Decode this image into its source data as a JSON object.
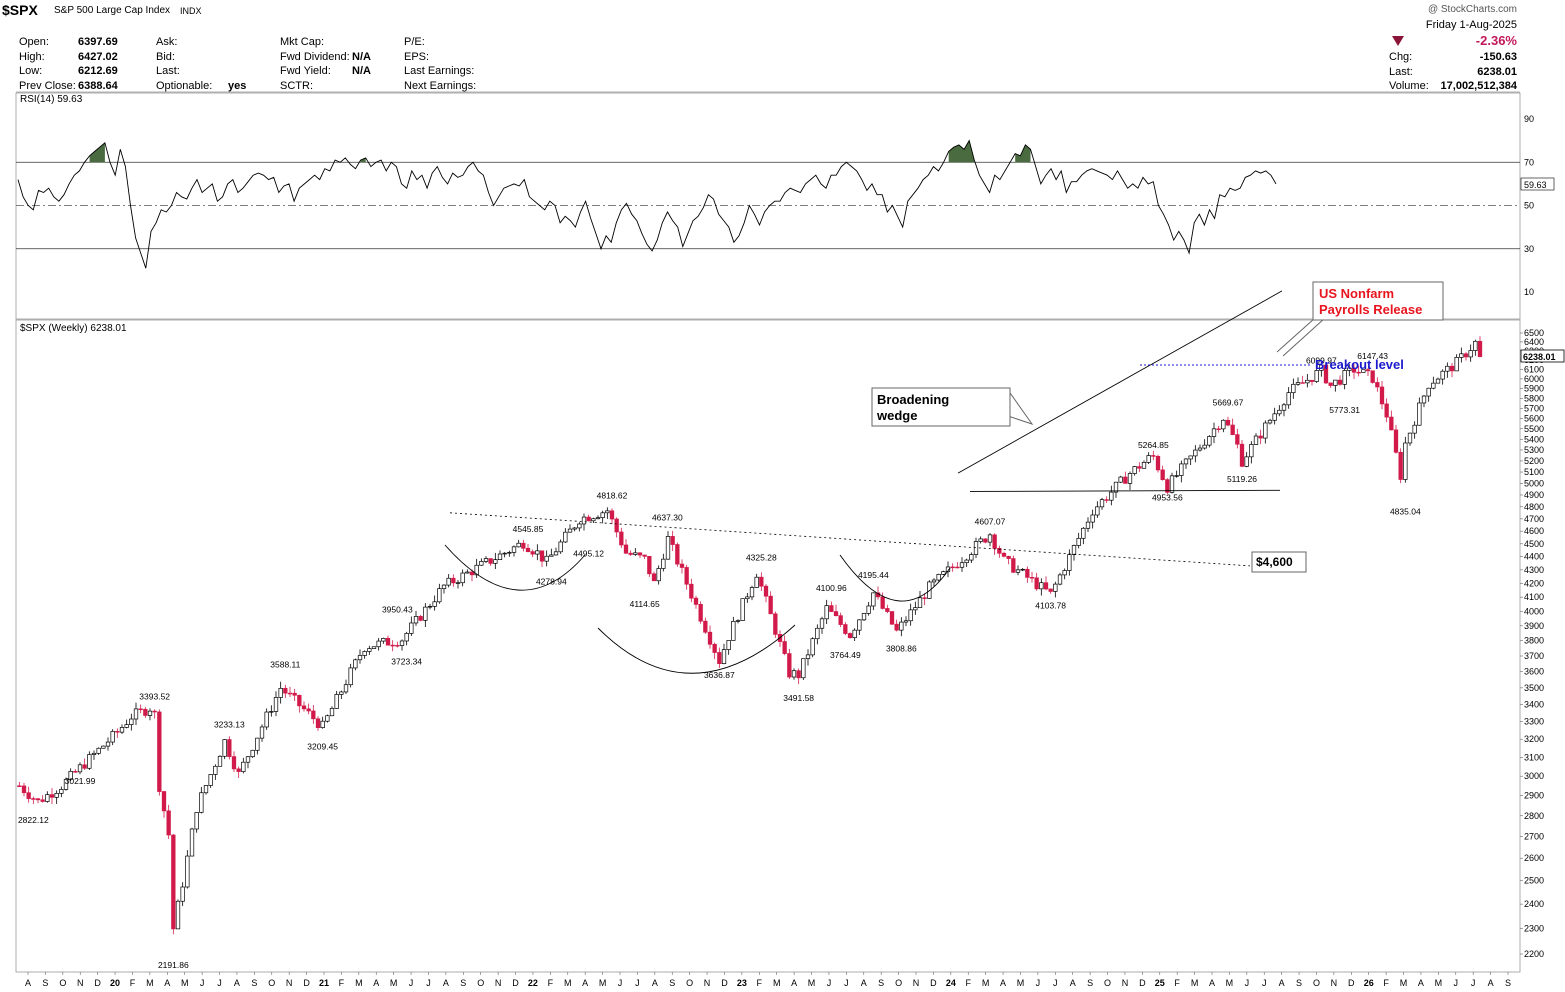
{
  "header": {
    "symbol": "$SPX",
    "name": "S&P 500 Large Cap Index",
    "exchange": "INDX",
    "brand": "@ StockCharts.com",
    "date": "Friday  1-Aug-2025",
    "change_pct": "-2.36%",
    "down_color": "#8b1538",
    "col1": [
      {
        "label": "Open:",
        "value": "6397.69"
      },
      {
        "label": "High:",
        "value": "6427.02"
      },
      {
        "label": "Low:",
        "value": "6212.69"
      },
      {
        "label": "Prev Close:",
        "value": "6388.64"
      }
    ],
    "col2": [
      {
        "label": "Ask:",
        "value": ""
      },
      {
        "label": "Bid:",
        "value": ""
      },
      {
        "label": "Last:",
        "value": ""
      },
      {
        "label": "Optionable:",
        "value": "yes"
      }
    ],
    "col3": [
      {
        "label": "Mkt Cap:",
        "value": ""
      },
      {
        "label": "Fwd Dividend:",
        "value": "N/A"
      },
      {
        "label": "Fwd Yield:",
        "value": "N/A"
      },
      {
        "label": "SCTR:",
        "value": ""
      }
    ],
    "col4": [
      {
        "label": "P/E:",
        "value": ""
      },
      {
        "label": "EPS:",
        "value": ""
      },
      {
        "label": "Last Earnings:",
        "value": ""
      },
      {
        "label": "Next Earnings:",
        "value": ""
      }
    ],
    "col5": [
      {
        "label": "Chg:",
        "value": "-150.63"
      },
      {
        "label": "Last:",
        "value": "6238.01"
      },
      {
        "label": "Volume:",
        "value": "17,002,512,384"
      }
    ]
  },
  "chart_data": [
    {
      "type": "line",
      "title": "RSI(14) 59.63",
      "last_value_label": "59.63",
      "ylim": [
        0,
        100
      ],
      "y_ticks": [
        10,
        30,
        50,
        70,
        90
      ],
      "reference_lines": [
        30,
        50,
        70
      ],
      "overbought_fill_color": "#4a6b40",
      "values": [
        62,
        54,
        50,
        48,
        57,
        56,
        58,
        54,
        52,
        55,
        60,
        64,
        66,
        70,
        73,
        75,
        77,
        79,
        70,
        64,
        76,
        68,
        50,
        35,
        28,
        21,
        38,
        42,
        48,
        47,
        50,
        56,
        54,
        53,
        58,
        62,
        56,
        58,
        60,
        52,
        54,
        60,
        62,
        56,
        58,
        61,
        64,
        65,
        64,
        62,
        63,
        56,
        59,
        60,
        52,
        58,
        60,
        62,
        64,
        62,
        67,
        66,
        71,
        70,
        72,
        69,
        67,
        71,
        72,
        68,
        70,
        71,
        66,
        70,
        68,
        60,
        58,
        66,
        62,
        64,
        58,
        65,
        68,
        63,
        60,
        65,
        63,
        64,
        68,
        70,
        66,
        64,
        56,
        50,
        54,
        58,
        59,
        60,
        59,
        62,
        54,
        52,
        50,
        48,
        52,
        50,
        42,
        45,
        43,
        40,
        47,
        52,
        44,
        37,
        30,
        36,
        33,
        42,
        48,
        51,
        46,
        43,
        37,
        32,
        29,
        34,
        42,
        47,
        43,
        40,
        31,
        37,
        43,
        45,
        49,
        55,
        53,
        46,
        43,
        40,
        33,
        36,
        42,
        50,
        46,
        41,
        47,
        50,
        52,
        52,
        56,
        58,
        57,
        56,
        60,
        62,
        64,
        60,
        58,
        64,
        64,
        68,
        70,
        68,
        66,
        62,
        57,
        60,
        55,
        55,
        47,
        50,
        45,
        40,
        52,
        55,
        58,
        62,
        64,
        68,
        66,
        70,
        75,
        77,
        78,
        76,
        80,
        71,
        64,
        60,
        56,
        64,
        62,
        66,
        70,
        74,
        73,
        78,
        76,
        68,
        60,
        64,
        67,
        62,
        66,
        56,
        61,
        61,
        64,
        66,
        67,
        66,
        65,
        64,
        62,
        66,
        62,
        58,
        60,
        58,
        63,
        60,
        61,
        50,
        46,
        41,
        34,
        38,
        34,
        28,
        42,
        46,
        41,
        48,
        44,
        55,
        54,
        58,
        57,
        58,
        63,
        64,
        66,
        65,
        66,
        64,
        60
      ]
    },
    {
      "type": "candlestick",
      "title": "$SPX (Weekly) 6238.01",
      "last_price_label": "6238.01",
      "ylim": [
        2150,
        6550
      ],
      "y_scale": "log",
      "y_ticks": [
        2200,
        2300,
        2400,
        2500,
        2600,
        2700,
        2800,
        2900,
        3000,
        3100,
        3200,
        3300,
        3400,
        3500,
        3600,
        3700,
        3800,
        3900,
        4000,
        4100,
        4200,
        4300,
        4400,
        4500,
        4600,
        4700,
        4800,
        4900,
        5000,
        5100,
        5200,
        5300,
        5400,
        5500,
        5600,
        5700,
        5800,
        5900,
        6000,
        6100,
        6200,
        6300,
        6400,
        6500
      ],
      "x_axis_labels": [
        "A",
        "S",
        "O",
        "N",
        "D",
        "20",
        "F",
        "M",
        "A",
        "M",
        "J",
        "J",
        "A",
        "S",
        "O",
        "N",
        "D",
        "21",
        "F",
        "M",
        "A",
        "M",
        "J",
        "J",
        "A",
        "S",
        "O",
        "N",
        "D",
        "22",
        "F",
        "M",
        "A",
        "M",
        "J",
        "J",
        "A",
        "S",
        "O",
        "N",
        "D",
        "23",
        "F",
        "M",
        "A",
        "M",
        "J",
        "J",
        "A",
        "S",
        "O",
        "N",
        "D",
        "24",
        "F",
        "M",
        "A",
        "M",
        "J",
        "J",
        "A",
        "S",
        "O",
        "N",
        "D",
        "25",
        "F",
        "M",
        "A",
        "M",
        "J",
        "J",
        "A",
        "S",
        "O",
        "N",
        "D",
        "26",
        "F",
        "M",
        "A",
        "M",
        "J",
        "J",
        "A",
        "S"
      ],
      "up_color": "#000000",
      "down_color": "#d11a4a",
      "close_path": [
        [
          "2019-08-02",
          2950
        ],
        [
          "2019-08-30",
          2870
        ],
        [
          "2019-10-04",
          2950
        ],
        [
          "2019-12-27",
          3240
        ],
        [
          "2020-01-17",
          3330
        ],
        [
          "2020-02-14",
          3380
        ],
        [
          "2020-02-21",
          3340
        ],
        [
          "2020-02-28",
          2950
        ],
        [
          "2020-03-13",
          2710
        ],
        [
          "2020-03-20",
          2300
        ],
        [
          "2020-04-03",
          2490
        ],
        [
          "2020-04-24",
          2840
        ],
        [
          "2020-06-05",
          3190
        ],
        [
          "2020-06-26",
          3010
        ],
        [
          "2020-08-28",
          3500
        ],
        [
          "2020-10-30",
          3270
        ],
        [
          "2020-12-31",
          3760
        ],
        [
          "2021-02-26",
          3810
        ],
        [
          "2021-04-30",
          4180
        ],
        [
          "2021-08-27",
          4510
        ],
        [
          "2021-09-17",
          4430
        ],
        [
          "2021-10-01",
          4360
        ],
        [
          "2021-11-19",
          4700
        ],
        [
          "2021-12-31",
          4770
        ],
        [
          "2022-01-28",
          4430
        ],
        [
          "2022-02-25",
          4380
        ],
        [
          "2022-03-11",
          4200
        ],
        [
          "2022-04-01",
          4540
        ],
        [
          "2022-05-06",
          4120
        ],
        [
          "2022-06-17",
          3670
        ],
        [
          "2022-07-01",
          3830
        ],
        [
          "2022-08-12",
          4280
        ],
        [
          "2022-09-30",
          3590
        ],
        [
          "2022-10-14",
          3580
        ],
        [
          "2022-11-25",
          4020
        ],
        [
          "2022-12-30",
          3840
        ],
        [
          "2023-02-03",
          4130
        ],
        [
          "2023-03-10",
          3860
        ],
        [
          "2023-04-28",
          4170
        ],
        [
          "2023-06-30",
          4450
        ],
        [
          "2023-07-28",
          4580
        ],
        [
          "2023-08-18",
          4370
        ],
        [
          "2023-10-27",
          4120
        ],
        [
          "2023-12-29",
          4770
        ],
        [
          "2024-02-23",
          5090
        ],
        [
          "2024-03-28",
          5250
        ],
        [
          "2024-04-19",
          4970
        ],
        [
          "2024-07-12",
          5610
        ],
        [
          "2024-08-02",
          5340
        ],
        [
          "2024-08-09",
          5200
        ],
        [
          "2024-10-18",
          5860
        ],
        [
          "2024-12-06",
          6090
        ],
        [
          "2024-12-20",
          5930
        ],
        [
          "2025-01-24",
          6100
        ],
        [
          "2025-02-21",
          6010
        ],
        [
          "2025-03-14",
          5640
        ],
        [
          "2025-04-04",
          5070
        ],
        [
          "2025-04-11",
          5360
        ],
        [
          "2025-05-16",
          5950
        ],
        [
          "2025-06-27",
          6170
        ],
        [
          "2025-07-25",
          6390
        ],
        [
          "2025-08-01",
          6238
        ]
      ],
      "annotations": [
        {
          "text": "3021.99",
          "date": "2019-11-01",
          "value": 3021.99
        },
        {
          "text": "2822.12",
          "date": "2019-08-23",
          "value": 2822.12
        },
        {
          "text": "3393.52",
          "date": "2020-02-21",
          "value": 3393.52
        },
        {
          "text": "2191.86",
          "date": "2020-03-20",
          "value": 2191.86
        },
        {
          "text": "3233.13",
          "date": "2020-06-12",
          "value": 3233.13
        },
        {
          "text": "3588.11",
          "date": "2020-09-04",
          "value": 3588.11
        },
        {
          "text": "3209.45",
          "date": "2020-10-30",
          "value": 3209.45
        },
        {
          "text": "3950.43",
          "date": "2021-02-19",
          "value": 3950.43
        },
        {
          "text": "3723.34",
          "date": "2021-03-05",
          "value": 3723.34
        },
        {
          "text": "4545.85",
          "date": "2021-09-03",
          "value": 4545.85
        },
        {
          "text": "4278.94",
          "date": "2021-10-08",
          "value": 4278.94
        },
        {
          "text": "4495.12",
          "date": "2021-12-03",
          "value": 4495.12
        },
        {
          "text": "4818.62",
          "date": "2022-01-07",
          "value": 4818.62
        },
        {
          "text": "4637.30",
          "date": "2022-03-31",
          "value": 4637.3
        },
        {
          "text": "4114.65",
          "date": "2022-02-25",
          "value": 4114.65
        },
        {
          "text": "4325.28",
          "date": "2022-08-19",
          "value": 4325.28
        },
        {
          "text": "3636.87",
          "date": "2022-06-17",
          "value": 3636.87
        },
        {
          "text": "3491.58",
          "date": "2022-10-14",
          "value": 3491.58
        },
        {
          "text": "4100.96",
          "date": "2022-12-02",
          "value": 4100.96
        },
        {
          "text": "3764.49",
          "date": "2022-12-23",
          "value": 3764.49
        },
        {
          "text": "4195.44",
          "date": "2023-02-03",
          "value": 4195.44
        },
        {
          "text": "3808.86",
          "date": "2023-03-17",
          "value": 3808.86
        },
        {
          "text": "4607.07",
          "date": "2023-07-28",
          "value": 4607.07
        },
        {
          "text": "4103.78",
          "date": "2023-10-27",
          "value": 4103.78
        },
        {
          "text": "5264.85",
          "date": "2024-03-29",
          "value": 5264.85
        },
        {
          "text": "4953.56",
          "date": "2024-04-19",
          "value": 4953.56
        },
        {
          "text": "5669.67",
          "date": "2024-07-19",
          "value": 5669.67
        },
        {
          "text": "5119.26",
          "date": "2024-08-09",
          "value": 5119.26
        },
        {
          "text": "6099.97",
          "date": "2024-12-06",
          "value": 6099.97
        },
        {
          "text": "6147.43",
          "date": "2025-02-21",
          "value": 6147.43
        },
        {
          "text": "5773.31",
          "date": "2025-01-10",
          "value": 5773.31
        },
        {
          "text": "4835.04",
          "date": "2025-04-11",
          "value": 4835.04
        }
      ],
      "callouts": [
        {
          "text_lines": [
            "US Nonfarm",
            "Payrolls Release"
          ],
          "color": "#e8141e"
        },
        {
          "text_lines": [
            "Broadening",
            "wedge"
          ],
          "color": "#000000"
        },
        {
          "text_lines": [
            "$4,600"
          ],
          "color": "#000000"
        }
      ],
      "breakout_label": "Breakout level",
      "breakout_value": 6147.43,
      "breakout_color": "#1a1acc"
    }
  ]
}
